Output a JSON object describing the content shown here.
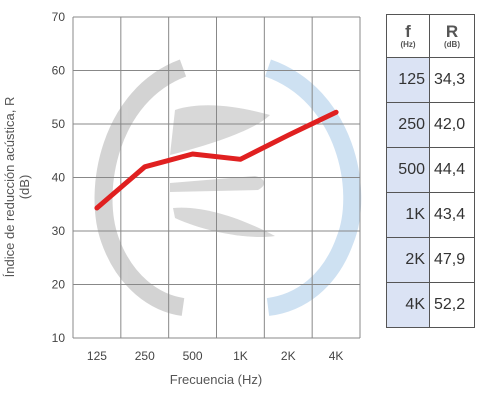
{
  "chart_data": {
    "type": "line",
    "xlabel": "Frecuencia (Hz)",
    "ylabel": "Índice de reducción acústica, R (dB)",
    "categories": [
      "125",
      "250",
      "500",
      "1K",
      "2K",
      "4K"
    ],
    "values": [
      34.3,
      42.0,
      44.4,
      43.4,
      47.9,
      52.2
    ],
    "ylim": [
      10,
      70
    ],
    "yticks": [
      "10",
      "20",
      "30",
      "40",
      "50",
      "60",
      "70"
    ],
    "grid": true,
    "line_color": "#e02020"
  },
  "table": {
    "header_f": "f",
    "header_f_unit": "(Hz)",
    "header_r": "R",
    "header_r_unit": "(dB)",
    "rows": [
      {
        "f": "125",
        "r": "34,3"
      },
      {
        "f": "250",
        "r": "42,0"
      },
      {
        "f": "500",
        "r": "44,4"
      },
      {
        "f": "1K",
        "r": "43,4"
      },
      {
        "f": "2K",
        "r": "47,9"
      },
      {
        "f": "4K",
        "r": "52,2"
      }
    ]
  }
}
